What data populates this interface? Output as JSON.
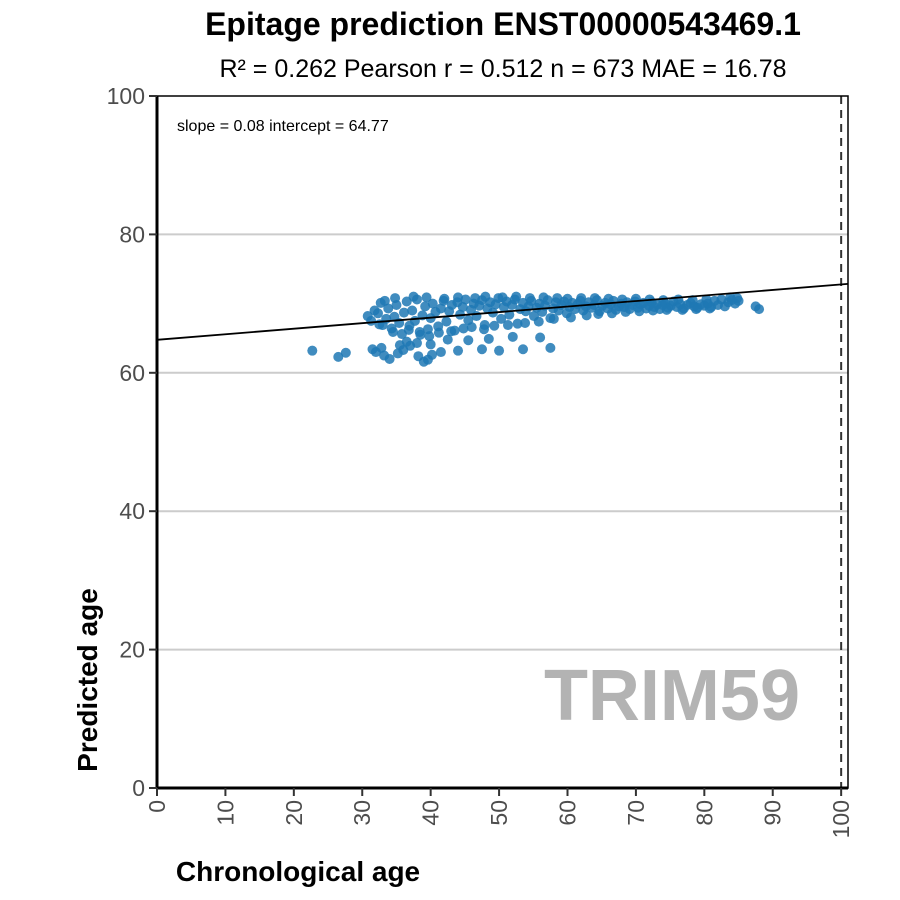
{
  "chart_data": {
    "type": "scatter",
    "title": "Epitage prediction ENST00000543469.1",
    "subtitle": "R² = 0.262   Pearson r = 0.512   n = 673   MAE = 16.78",
    "xlabel": "Chronological age",
    "ylabel": "Predicted age",
    "xlim": [
      0,
      101
    ],
    "ylim": [
      0,
      100
    ],
    "x_ticks": [
      0,
      10,
      20,
      30,
      40,
      50,
      60,
      70,
      80,
      90,
      100
    ],
    "y_ticks": [
      0,
      20,
      40,
      60,
      80,
      100
    ],
    "grid": "horizontal",
    "point_color": "#1f78b4",
    "fit_line": {
      "slope": 0.08,
      "intercept": 64.77,
      "color": "#000000"
    },
    "reference_line": {
      "x": 100,
      "style": "dashed"
    },
    "annotation": "slope = 0.08   intercept = 64.77",
    "watermark": "TRIM59",
    "points": [
      [
        22.7,
        63.2
      ],
      [
        26.5,
        62.3
      ],
      [
        27.6,
        62.9
      ],
      [
        31.5,
        63.4
      ],
      [
        32.0,
        63.0
      ],
      [
        32.8,
        63.6
      ],
      [
        33.2,
        62.5
      ],
      [
        34.0,
        62.0
      ],
      [
        35.2,
        62.8
      ],
      [
        36.0,
        63.3
      ],
      [
        37.0,
        63.9
      ],
      [
        38.2,
        62.4
      ],
      [
        39.0,
        61.6
      ],
      [
        39.6,
        61.9
      ],
      [
        40.2,
        62.6
      ],
      [
        41.5,
        63.0
      ],
      [
        44.0,
        63.2
      ],
      [
        47.5,
        63.4
      ],
      [
        50.0,
        63.2
      ],
      [
        53.5,
        63.4
      ],
      [
        57.5,
        63.6
      ],
      [
        35.5,
        64.0
      ],
      [
        36.5,
        64.5
      ],
      [
        38.0,
        64.3
      ],
      [
        40.0,
        64.1
      ],
      [
        42.5,
        64.8
      ],
      [
        45.5,
        64.7
      ],
      [
        48.5,
        64.9
      ],
      [
        52.0,
        65.2
      ],
      [
        56.0,
        65.1
      ],
      [
        30.8,
        68.2
      ],
      [
        31.3,
        67.5
      ],
      [
        31.8,
        69.0
      ],
      [
        32.3,
        68.6
      ],
      [
        32.7,
        70.1
      ],
      [
        33.0,
        66.9
      ],
      [
        33.5,
        67.8
      ],
      [
        33.8,
        69.3
      ],
      [
        34.3,
        66.4
      ],
      [
        34.7,
        68.1
      ],
      [
        35.0,
        69.8
      ],
      [
        35.4,
        67.2
      ],
      [
        35.8,
        65.6
      ],
      [
        36.1,
        68.7
      ],
      [
        36.5,
        70.3
      ],
      [
        36.9,
        66.8
      ],
      [
        37.3,
        69.0
      ],
      [
        37.7,
        67.5
      ],
      [
        38.0,
        70.6
      ],
      [
        38.4,
        65.9
      ],
      [
        38.8,
        68.3
      ],
      [
        39.2,
        69.6
      ],
      [
        39.6,
        66.3
      ],
      [
        40.0,
        67.9
      ],
      [
        40.3,
        70.0
      ],
      [
        40.7,
        68.8
      ],
      [
        41.1,
        66.7
      ],
      [
        41.5,
        69.3
      ],
      [
        41.9,
        70.4
      ],
      [
        42.3,
        67.4
      ],
      [
        42.7,
        68.9
      ],
      [
        43.1,
        69.8
      ],
      [
        43.5,
        66.1
      ],
      [
        43.9,
        70.2
      ],
      [
        44.3,
        68.4
      ],
      [
        44.7,
        69.5
      ],
      [
        45.1,
        70.6
      ],
      [
        45.5,
        67.6
      ],
      [
        45.9,
        69.1
      ],
      [
        46.3,
        70.0
      ],
      [
        46.7,
        68.2
      ],
      [
        47.1,
        69.7
      ],
      [
        47.5,
        70.5
      ],
      [
        47.9,
        66.9
      ],
      [
        48.3,
        69.3
      ],
      [
        48.7,
        70.2
      ],
      [
        49.1,
        68.7
      ],
      [
        49.5,
        69.9
      ],
      [
        49.9,
        70.8
      ],
      [
        50.3,
        67.8
      ],
      [
        50.7,
        69.5
      ],
      [
        51.1,
        70.3
      ],
      [
        51.5,
        68.4
      ],
      [
        51.9,
        69.8
      ],
      [
        52.3,
        70.6
      ],
      [
        52.7,
        67.1
      ],
      [
        53.1,
        69.2
      ],
      [
        53.5,
        70.1
      ],
      [
        53.9,
        68.9
      ],
      [
        54.3,
        69.6
      ],
      [
        54.7,
        70.4
      ],
      [
        55.1,
        68.2
      ],
      [
        55.5,
        69.4
      ],
      [
        55.9,
        70.0
      ],
      [
        56.3,
        68.8
      ],
      [
        56.7,
        69.7
      ],
      [
        57.1,
        70.5
      ],
      [
        57.5,
        67.9
      ],
      [
        57.9,
        69.3
      ],
      [
        58.3,
        70.2
      ],
      [
        58.7,
        69.0
      ],
      [
        59.1,
        69.8
      ],
      [
        59.5,
        70.3
      ],
      [
        59.9,
        68.6
      ],
      [
        60.3,
        69.5
      ],
      [
        60.7,
        70.1
      ],
      [
        61.1,
        69.2
      ],
      [
        61.5,
        69.9
      ],
      [
        61.9,
        70.4
      ],
      [
        62.3,
        69.0
      ],
      [
        62.7,
        69.6
      ],
      [
        63.1,
        70.2
      ],
      [
        63.5,
        69.4
      ],
      [
        63.9,
        69.8
      ],
      [
        64.3,
        70.5
      ],
      [
        64.7,
        68.9
      ],
      [
        65.1,
        69.7
      ],
      [
        65.5,
        70.1
      ],
      [
        65.9,
        69.3
      ],
      [
        66.3,
        69.9
      ],
      [
        66.7,
        70.4
      ],
      [
        67.1,
        69.1
      ],
      [
        67.5,
        69.6
      ],
      [
        67.9,
        70.0
      ],
      [
        68.3,
        69.5
      ],
      [
        68.7,
        70.2
      ],
      [
        69.1,
        69.2
      ],
      [
        69.5,
        69.8
      ],
      [
        69.9,
        70.3
      ],
      [
        70.3,
        69.4
      ],
      [
        70.7,
        69.9
      ],
      [
        71.1,
        70.1
      ],
      [
        71.5,
        69.3
      ],
      [
        71.9,
        69.7
      ],
      [
        72.3,
        70.2
      ],
      [
        72.7,
        69.5
      ],
      [
        73.1,
        69.9
      ],
      [
        73.5,
        69.2
      ],
      [
        73.9,
        69.8
      ],
      [
        74.3,
        70.0
      ],
      [
        74.7,
        69.4
      ],
      [
        75.1,
        69.7
      ],
      [
        75.5,
        70.3
      ],
      [
        76.0,
        69.5
      ],
      [
        76.5,
        69.9
      ],
      [
        77.0,
        69.3
      ],
      [
        77.5,
        69.8
      ],
      [
        78.0,
        70.1
      ],
      [
        78.5,
        69.6
      ],
      [
        79.0,
        69.4
      ],
      [
        79.5,
        69.9
      ],
      [
        80.0,
        69.7
      ],
      [
        80.5,
        70.0
      ],
      [
        81.0,
        69.5
      ],
      [
        81.5,
        70.4
      ],
      [
        82.0,
        69.8
      ],
      [
        82.5,
        70.6
      ],
      [
        83.0,
        69.6
      ],
      [
        83.5,
        70.2
      ],
      [
        84.0,
        70.5
      ],
      [
        84.5,
        70.0
      ],
      [
        85.0,
        70.4
      ],
      [
        87.5,
        69.6
      ],
      [
        88.0,
        69.2
      ],
      [
        32.5,
        67.0
      ],
      [
        34.5,
        65.9
      ],
      [
        36.8,
        66.2
      ],
      [
        38.5,
        65.5
      ],
      [
        39.8,
        65.3
      ],
      [
        41.2,
        65.8
      ],
      [
        43.0,
        66.0
      ],
      [
        44.8,
        66.4
      ],
      [
        46.0,
        66.6
      ],
      [
        47.8,
        66.3
      ],
      [
        49.3,
        66.8
      ],
      [
        51.3,
        66.9
      ],
      [
        53.8,
        67.2
      ],
      [
        55.8,
        67.4
      ],
      [
        58.0,
        67.8
      ],
      [
        60.5,
        68.0
      ],
      [
        62.8,
        68.3
      ],
      [
        64.5,
        68.5
      ],
      [
        66.5,
        68.6
      ],
      [
        68.5,
        68.8
      ],
      [
        70.5,
        68.9
      ],
      [
        72.5,
        69.0
      ],
      [
        74.5,
        69.1
      ],
      [
        76.8,
        69.1
      ],
      [
        78.8,
        69.2
      ],
      [
        80.8,
        69.3
      ],
      [
        33.3,
        70.4
      ],
      [
        34.8,
        70.8
      ],
      [
        37.5,
        71.0
      ],
      [
        39.4,
        70.9
      ],
      [
        42.0,
        70.7
      ],
      [
        44.0,
        70.9
      ],
      [
        46.5,
        70.8
      ],
      [
        48.0,
        71.0
      ],
      [
        50.5,
        70.9
      ],
      [
        52.5,
        71.0
      ],
      [
        54.5,
        70.8
      ],
      [
        56.5,
        70.9
      ],
      [
        58.5,
        70.8
      ],
      [
        60.0,
        70.7
      ],
      [
        62.0,
        70.8
      ],
      [
        64.0,
        70.8
      ],
      [
        66.0,
        70.7
      ],
      [
        68.0,
        70.6
      ],
      [
        70.0,
        70.7
      ],
      [
        72.0,
        70.6
      ],
      [
        74.0,
        70.5
      ],
      [
        76.2,
        70.6
      ],
      [
        78.3,
        70.5
      ],
      [
        80.3,
        70.6
      ],
      [
        83.8,
        70.9
      ],
      [
        84.8,
        70.8
      ]
    ]
  }
}
